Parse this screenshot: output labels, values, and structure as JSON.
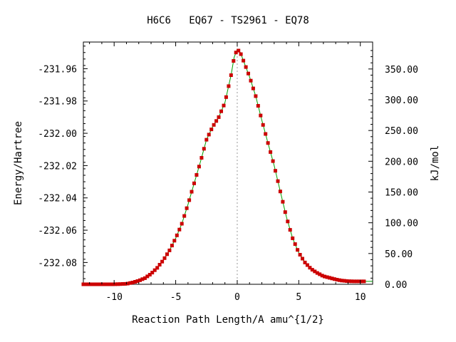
{
  "chart_data": {
    "type": "line",
    "title": "H6C6   EQ67 - TS2961 - EQ78",
    "xlabel": "Reaction Path Length/A amu^{1/2}",
    "ylabel": "Energy/Hartree",
    "y2label": "kJ/mol",
    "xlim": [
      -12.5,
      11
    ],
    "ylim": [
      -232.0935,
      -231.9435
    ],
    "y2lim": [
      0.0,
      393.8
    ],
    "x_ticks": [
      -10,
      -5,
      0,
      5,
      10
    ],
    "x_tick_labels": [
      "-10",
      "-5",
      "0",
      "5",
      "10"
    ],
    "y_ticks": [
      -231.96,
      -231.98,
      -232.0,
      -232.02,
      -232.04,
      -232.06,
      -232.08
    ],
    "y_tick_labels": [
      "-231.96",
      "-231.98",
      "-232.00",
      "-232.02",
      "-232.04",
      "-232.06",
      "-232.08"
    ],
    "y2_ticks": [
      0,
      50,
      100,
      150,
      200,
      250,
      300,
      350
    ],
    "y2_tick_labels": [
      "0.00",
      "50.00",
      "100.00",
      "150.00",
      "200.00",
      "250.00",
      "300.00",
      "350.00"
    ],
    "ts_x": 0,
    "colors": {
      "line": "#00a000",
      "marker": "#cc0000",
      "ts_line": "#999999",
      "axis": "#000000"
    },
    "series": [
      {
        "x": [
          -12.5,
          -11.0,
          -10.0,
          -9.0,
          -8.5,
          -8.0,
          -7.5,
          -7.0,
          -6.5,
          -6.0,
          -5.5,
          -5.0,
          -4.5,
          -4.0,
          -3.5,
          -3.0,
          -2.5,
          -2.0,
          -1.5,
          -1.0,
          -0.5,
          -0.25,
          0.0,
          0.25,
          0.5,
          1.0,
          1.5,
          2.0,
          2.5,
          3.0,
          3.5,
          4.0,
          4.5,
          5.0,
          5.5,
          6.0,
          6.5,
          7.0,
          7.5,
          8.0,
          8.5,
          9.0,
          9.5,
          10.0,
          10.3
        ],
        "y": [
          -232.0935,
          -232.0935,
          -232.0935,
          -232.0932,
          -232.0924,
          -232.0913,
          -232.0897,
          -232.087,
          -232.0833,
          -232.0785,
          -232.0725,
          -232.065,
          -232.056,
          -232.044,
          -232.031,
          -232.018,
          -232.004,
          -231.996,
          -231.99,
          -231.981,
          -231.964,
          -231.953,
          -231.948,
          -231.95,
          -231.955,
          -231.965,
          -231.977,
          -231.992,
          -232.006,
          -232.02,
          -232.036,
          -232.052,
          -232.065,
          -232.074,
          -232.08,
          -232.084,
          -232.0865,
          -232.0885,
          -232.0895,
          -232.0905,
          -232.0912,
          -232.0916,
          -232.0917,
          -232.0917,
          -232.0917
        ]
      }
    ]
  }
}
